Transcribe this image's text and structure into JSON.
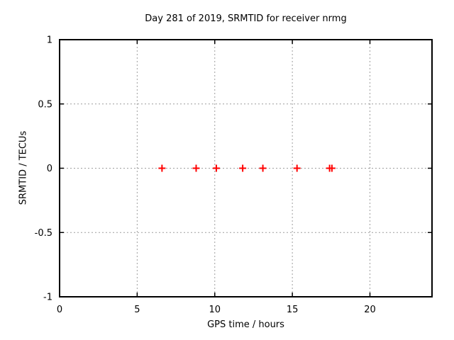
{
  "chart_data": {
    "type": "scatter",
    "title": "Day 281 of 2019, SRMTID for receiver nrmg",
    "xlabel": "GPS time / hours",
    "ylabel": "SRMTID / TECUs",
    "xlim": [
      0,
      24
    ],
    "ylim": [
      -1,
      1
    ],
    "grid": true,
    "legend": "none",
    "xticks": [
      {
        "value": 0,
        "label": "0"
      },
      {
        "value": 5,
        "label": "5"
      },
      {
        "value": 10,
        "label": "10"
      },
      {
        "value": 15,
        "label": "15"
      },
      {
        "value": 20,
        "label": "20"
      }
    ],
    "yticks": [
      {
        "value": -1,
        "label": "-1"
      },
      {
        "value": -0.5,
        "label": "-0.5"
      },
      {
        "value": 0,
        "label": "0"
      },
      {
        "value": 0.5,
        "label": "0.5"
      },
      {
        "value": 1,
        "label": "1"
      }
    ],
    "series": [
      {
        "name": "srmtid-points",
        "marker": "plus",
        "color": "#ff0000",
        "points": [
          {
            "x": 6.6,
            "y": 0
          },
          {
            "x": 8.8,
            "y": 0
          },
          {
            "x": 10.1,
            "y": 0
          },
          {
            "x": 11.8,
            "y": 0
          },
          {
            "x": 13.1,
            "y": 0
          },
          {
            "x": 15.3,
            "y": 0
          },
          {
            "x": 17.4,
            "y": 0
          },
          {
            "x": 17.55,
            "y": 0
          }
        ]
      }
    ],
    "colors": {
      "grid": "#9e9e9e",
      "axis": "#000000",
      "text": "#000000",
      "background": "#ffffff"
    }
  }
}
